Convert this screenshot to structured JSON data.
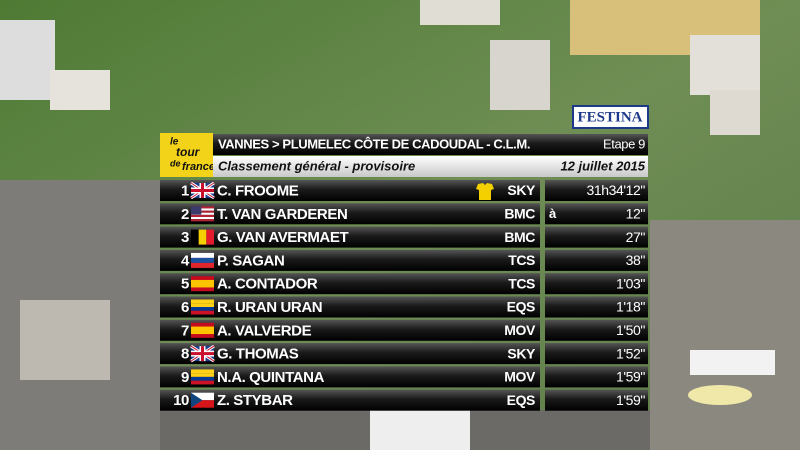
{
  "sponsor": "FESTINA",
  "logo": [
    "le",
    "tour",
    "de",
    "france"
  ],
  "header": {
    "stage_route": "VANNES > PLUMELEC CÔTE DE CADOUDAL  - C.L.M.",
    "stage_number": "Etape 9",
    "subtitle": "Classement général  - provisoire",
    "date": "12 juillet 2015"
  },
  "table": {
    "rows": [
      {
        "rank": "1",
        "rider": "C. FROOME",
        "team": "SKY",
        "time": "31h34'12\""
      },
      {
        "rank": "2",
        "rider": "T. VAN GARDEREN",
        "team": "BMC",
        "gap_prefix": "à",
        "time": "12\""
      },
      {
        "rank": "3",
        "rider": "G. VAN AVERMAET",
        "team": "BMC",
        "time": "27\""
      },
      {
        "rank": "4",
        "rider": "P. SAGAN",
        "team": "TCS",
        "time": "38\""
      },
      {
        "rank": "5",
        "rider": "A. CONTADOR",
        "team": "TCS",
        "time": "1'03\""
      },
      {
        "rank": "6",
        "rider": "R. URAN URAN",
        "team": "EQS",
        "time": "1'18\""
      },
      {
        "rank": "7",
        "rider": "A. VALVERDE",
        "team": "MOV",
        "time": "1'50\""
      },
      {
        "rank": "8",
        "rider": "G. THOMAS",
        "team": "SKY",
        "time": "1'52\""
      },
      {
        "rank": "9",
        "rider": "N.A. QUINTANA",
        "team": "MOV",
        "time": "1'59\""
      },
      {
        "rank": "10",
        "rider": "Z. STYBAR",
        "team": "EQS",
        "time": "1'59\""
      }
    ]
  }
}
